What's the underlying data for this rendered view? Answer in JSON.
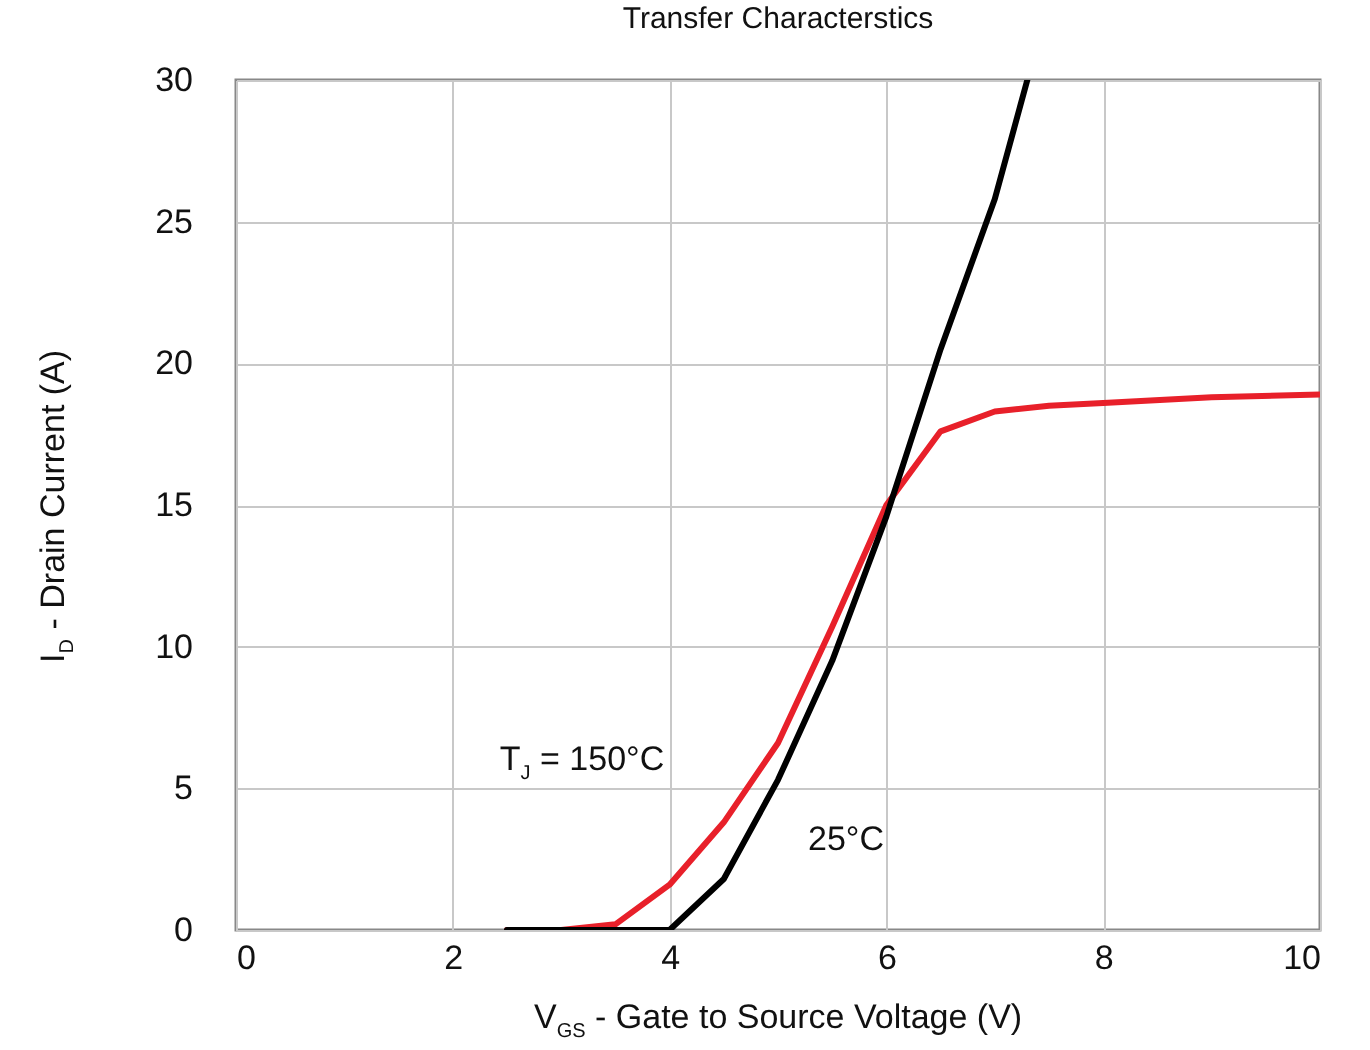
{
  "chart_data": {
    "type": "line",
    "title": "Transfer Characterstics",
    "xlabel": "V$_{GS}$ - Gate to Source Voltage (V)",
    "ylabel": "I$_{D}$ - Drain Current (A)",
    "series": [
      {
        "name": "T$_{J}$ = 150°C",
        "color": "#e8202a",
        "x": [
          2.5,
          3,
          3.5,
          4,
          4.5,
          5,
          5.5,
          6,
          6.5,
          7,
          7.5,
          8,
          9,
          10
        ],
        "values": [
          0,
          0,
          0.2,
          1.6,
          3.8,
          6.6,
          10.7,
          15,
          17.6,
          18.3,
          18.5,
          18.6,
          18.8,
          18.9
        ]
      },
      {
        "name": "25°C",
        "color": "#000000",
        "x": [
          2.5,
          3,
          3.5,
          4,
          4.5,
          5,
          5.5,
          6,
          6.5,
          7,
          7.3
        ],
        "values": [
          0,
          0,
          0,
          0,
          1.8,
          5.3,
          9.5,
          14.6,
          20.5,
          25.8,
          30
        ]
      }
    ],
    "xlim": [
      0,
      10
    ],
    "ylim": [
      0,
      30
    ],
    "xticks": [
      0,
      2,
      4,
      6,
      8,
      10
    ],
    "yticks": [
      0,
      5,
      10,
      15,
      20,
      25,
      30
    ],
    "grid": true,
    "legend": false,
    "marker": "none",
    "line_style": "solid"
  }
}
